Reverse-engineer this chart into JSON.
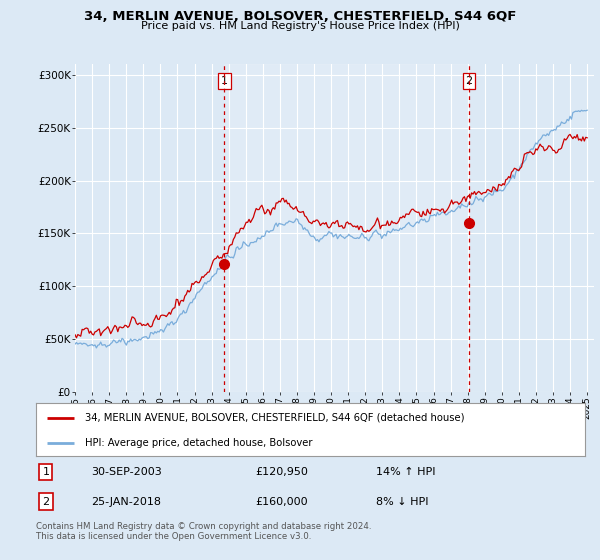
{
  "title": "34, MERLIN AVENUE, BOLSOVER, CHESTERFIELD, S44 6QF",
  "subtitle": "Price paid vs. HM Land Registry's House Price Index (HPI)",
  "bg_color": "#dce9f5",
  "plot_bg_color": "#dce9f5",
  "line1_color": "#cc0000",
  "line2_color": "#7aaddb",
  "vline_color": "#cc0000",
  "ylim": [
    0,
    310000
  ],
  "yticks": [
    0,
    50000,
    100000,
    150000,
    200000,
    250000,
    300000
  ],
  "ytick_labels": [
    "£0",
    "£50K",
    "£100K",
    "£150K",
    "£200K",
    "£250K",
    "£300K"
  ],
  "sale1_year": 2003.75,
  "sale1_price": 120950,
  "sale2_year": 2018.07,
  "sale2_price": 160000,
  "sale1_date": "30-SEP-2003",
  "sale1_hpi": "14% ↑ HPI",
  "sale2_date": "25-JAN-2018",
  "sale2_hpi": "8% ↓ HPI",
  "legend_line1": "34, MERLIN AVENUE, BOLSOVER, CHESTERFIELD, S44 6QF (detached house)",
  "legend_line2": "HPI: Average price, detached house, Bolsover",
  "footer": "Contains HM Land Registry data © Crown copyright and database right 2024.\nThis data is licensed under the Open Government Licence v3.0."
}
